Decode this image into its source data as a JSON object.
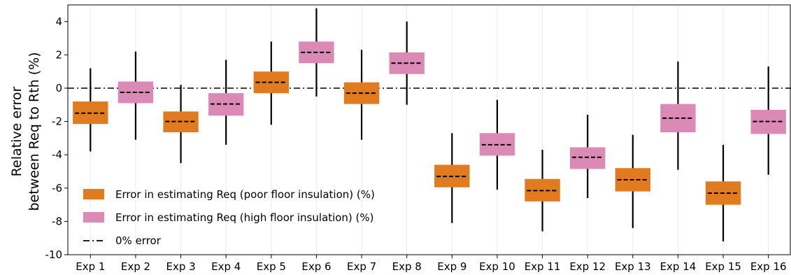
{
  "chart_data": {
    "type": "box",
    "title": "",
    "xlabel": "",
    "ylabel_lines": [
      "Relative error",
      "between Req to Rth (%)"
    ],
    "ylim": [
      -10,
      5
    ],
    "yticks": [
      -10,
      -8,
      -6,
      -4,
      -2,
      0,
      2,
      4
    ],
    "grid": "vertical",
    "legend_position": "lower-left",
    "categories": [
      "Exp 1",
      "Exp 2",
      "Exp 3",
      "Exp 4",
      "Exp 5",
      "Exp 6",
      "Exp 7",
      "Exp 8",
      "Exp 9",
      "Exp 10",
      "Exp 11",
      "Exp 12",
      "Exp 13",
      "Exp 14",
      "Exp 15",
      "Exp 16"
    ],
    "series": [
      {
        "name": "Error in estimating Req (poor floor insulation) (%)",
        "color": "#E07B20",
        "boxes": [
          {
            "category": "Exp 1",
            "whisker_low": -3.8,
            "q1": -2.15,
            "median": -1.5,
            "q3": -0.8,
            "whisker_high": 1.2
          },
          {
            "category": "Exp 3",
            "whisker_low": -4.5,
            "q1": -2.65,
            "median": -2.0,
            "q3": -1.4,
            "whisker_high": 0.2
          },
          {
            "category": "Exp 5",
            "whisker_low": -2.2,
            "q1": -0.3,
            "median": 0.35,
            "q3": 1.0,
            "whisker_high": 2.8
          },
          {
            "category": "Exp 7",
            "whisker_low": -3.1,
            "q1": -0.95,
            "median": -0.3,
            "q3": 0.35,
            "whisker_high": 2.3
          },
          {
            "category": "Exp 9",
            "whisker_low": -8.1,
            "q1": -5.95,
            "median": -5.3,
            "q3": -4.6,
            "whisker_high": -2.7
          },
          {
            "category": "Exp 11",
            "whisker_low": -8.6,
            "q1": -6.8,
            "median": -6.15,
            "q3": -5.45,
            "whisker_high": -3.7
          },
          {
            "category": "Exp 13",
            "whisker_low": -8.4,
            "q1": -6.2,
            "median": -5.5,
            "q3": -4.8,
            "whisker_high": -2.8
          },
          {
            "category": "Exp 15",
            "whisker_low": -9.2,
            "q1": -7.0,
            "median": -6.3,
            "q3": -5.6,
            "whisker_high": -3.4
          }
        ]
      },
      {
        "name": "Error in estimating Req (high floor insulation) (%)",
        "color": "#DA8AB5",
        "boxes": [
          {
            "category": "Exp 2",
            "whisker_low": -3.1,
            "q1": -0.9,
            "median": -0.25,
            "q3": 0.4,
            "whisker_high": 2.2
          },
          {
            "category": "Exp 4",
            "whisker_low": -3.4,
            "q1": -1.65,
            "median": -0.95,
            "q3": -0.3,
            "whisker_high": 1.7
          },
          {
            "category": "Exp 6",
            "whisker_low": -0.5,
            "q1": 1.5,
            "median": 2.15,
            "q3": 2.8,
            "whisker_high": 4.8
          },
          {
            "category": "Exp 8",
            "whisker_low": -1.0,
            "q1": 0.85,
            "median": 1.5,
            "q3": 2.15,
            "whisker_high": 4.0
          },
          {
            "category": "Exp 10",
            "whisker_low": -6.1,
            "q1": -4.05,
            "median": -3.4,
            "q3": -2.7,
            "whisker_high": -0.7
          },
          {
            "category": "Exp 12",
            "whisker_low": -6.6,
            "q1": -4.85,
            "median": -4.15,
            "q3": -3.55,
            "whisker_high": -1.6
          },
          {
            "category": "Exp 14",
            "whisker_low": -4.9,
            "q1": -2.65,
            "median": -1.8,
            "q3": -0.95,
            "whisker_high": 1.6
          },
          {
            "category": "Exp 16",
            "whisker_low": -5.2,
            "q1": -2.75,
            "median": -2.0,
            "q3": -1.3,
            "whisker_high": 1.3
          }
        ]
      }
    ],
    "reference_line": {
      "name": "0% error",
      "y": 0,
      "style": "dash-dot",
      "color": "#000000"
    },
    "legend": [
      {
        "label": "Error in estimating Req (poor floor insulation) (%)",
        "kind": "patch",
        "color": "#E07B20"
      },
      {
        "label": "Error in estimating Req (high floor insulation) (%)",
        "kind": "patch",
        "color": "#DA8AB5"
      },
      {
        "label": "0% error",
        "kind": "dashdot-line",
        "color": "#000000"
      }
    ]
  }
}
